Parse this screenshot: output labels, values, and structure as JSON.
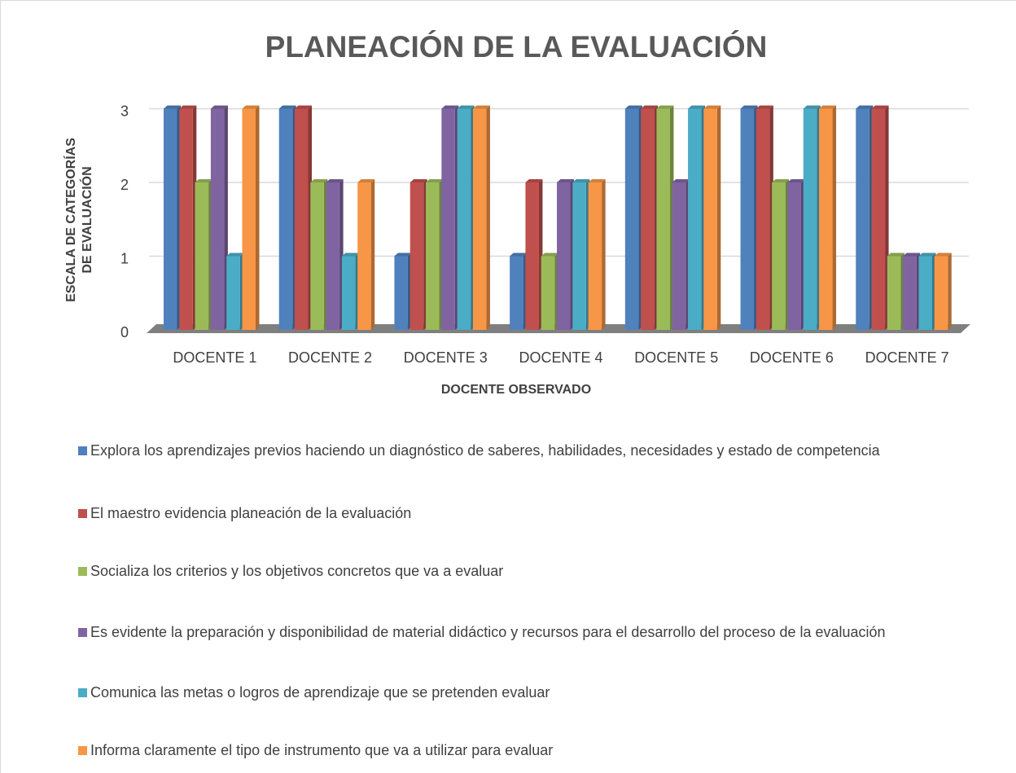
{
  "chart_data": {
    "type": "bar3d",
    "title": "PLANEACIÓN DE LA EVALUACIÓN",
    "x_label": "DOCENTE OBSERVADO",
    "y_label": [
      "ESCALA DE CATEGORÍAS",
      "DE EVALUACIÓN"
    ],
    "categories": [
      "DOCENTE 1",
      "DOCENTE 2",
      "DOCENTE 3",
      "DOCENTE 4",
      "DOCENTE 5",
      "DOCENTE 6",
      "DOCENTE 7"
    ],
    "series": [
      {
        "name": "Explora los aprendizajes previos haciendo un diagnóstico de saberes, habilidades, necesidades y estado de competencia",
        "color": "#4f81bd",
        "values": [
          3,
          3,
          1,
          1,
          3,
          3,
          3
        ]
      },
      {
        "name": "El maestro evidencia planeación de la evaluación",
        "color": "#c0504d",
        "values": [
          3,
          3,
          2,
          2,
          3,
          3,
          3
        ]
      },
      {
        "name": "Socializa los criterios y los objetivos concretos que va a evaluar",
        "color": "#9bbb59",
        "values": [
          2,
          2,
          2,
          1,
          3,
          2,
          1
        ]
      },
      {
        "name": "Es evidente la preparación y disponibilidad de material didáctico y recursos para el desarrollo del proceso de la evaluación",
        "color": "#8064a2",
        "values": [
          3,
          2,
          3,
          2,
          2,
          2,
          1
        ]
      },
      {
        "name": "Comunica las metas o logros de aprendizaje que se pretenden evaluar",
        "color": "#4bacc6",
        "values": [
          1,
          1,
          3,
          2,
          3,
          3,
          1
        ]
      },
      {
        "name": "Informa claramente el tipo de instrumento que va a utilizar para evaluar",
        "color": "#f79646",
        "values": [
          3,
          2,
          3,
          2,
          3,
          3,
          1
        ]
      }
    ],
    "ylim": [
      0,
      3
    ],
    "yticks": [
      0,
      1,
      2,
      3
    ],
    "grid": true,
    "legend": "bottom"
  }
}
